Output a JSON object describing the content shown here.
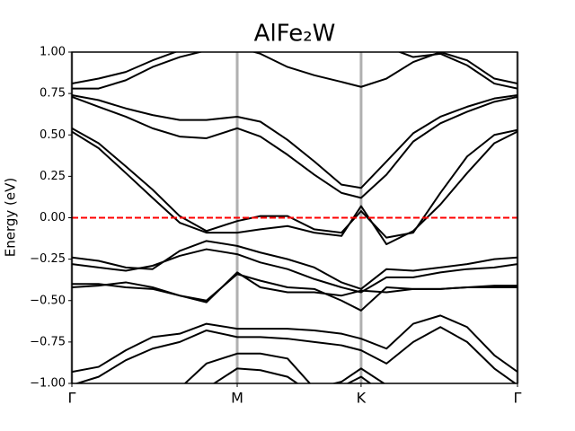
{
  "chart_data": {
    "type": "line",
    "title": "AlFe₂W",
    "ylabel": "Energy (eV)",
    "x": [
      0,
      0.06,
      0.121,
      0.181,
      0.242,
      0.302,
      0.371,
      0.423,
      0.484,
      0.544,
      0.605,
      0.649,
      0.706,
      0.766,
      0.827,
      0.887,
      0.948,
      1
    ],
    "xlim": [
      0,
      1
    ],
    "xticks": [
      {
        "value": 0,
        "label": "Γ"
      },
      {
        "value": 0.371,
        "label": "M"
      },
      {
        "value": 0.649,
        "label": "K"
      },
      {
        "value": 1,
        "label": "Γ"
      }
    ],
    "ylim": [
      -1,
      1
    ],
    "yticks": [
      {
        "value": -1,
        "label": "−1.00"
      },
      {
        "value": -0.75,
        "label": "−0.75"
      },
      {
        "value": -0.5,
        "label": "−0.50"
      },
      {
        "value": -0.25,
        "label": "−0.25"
      },
      {
        "value": 0,
        "label": "0.00"
      },
      {
        "value": 0.25,
        "label": "0.25"
      },
      {
        "value": 0.5,
        "label": "0.50"
      },
      {
        "value": 0.75,
        "label": "0.75"
      },
      {
        "value": 1,
        "label": "1.00"
      }
    ],
    "grid": "x",
    "grid_color": "#b0b0b0",
    "hline": {
      "y": 0,
      "color": "#ff0000",
      "style": "dashed"
    },
    "series": [
      {
        "color": "#000000",
        "values": [
          0.81,
          0.84,
          0.88,
          0.95,
          1.01,
          null,
          1.03,
          0.99,
          0.91,
          0.86,
          0.82,
          0.79,
          0.84,
          0.94,
          1.0,
          0.95,
          0.84,
          0.81
        ]
      },
      {
        "color": "#000000",
        "values": [
          0.78,
          0.78,
          0.83,
          0.91,
          0.97,
          1.01,
          null,
          null,
          null,
          null,
          null,
          null,
          1.03,
          0.97,
          0.99,
          0.92,
          0.81,
          0.78
        ]
      },
      {
        "color": "#000000",
        "values": [
          0.74,
          0.71,
          0.66,
          0.62,
          0.59,
          0.59,
          0.61,
          0.58,
          0.47,
          0.34,
          0.2,
          0.18,
          0.34,
          0.51,
          0.61,
          0.67,
          0.72,
          0.74
        ]
      },
      {
        "color": "#000000",
        "values": [
          0.73,
          0.67,
          0.61,
          0.54,
          0.49,
          0.48,
          0.54,
          0.49,
          0.38,
          0.26,
          0.15,
          0.12,
          0.26,
          0.46,
          0.57,
          0.64,
          0.7,
          0.73
        ]
      },
      {
        "color": "#000000",
        "values": [
          0.54,
          0.45,
          0.31,
          0.17,
          0.01,
          -0.08,
          -0.02,
          0.01,
          0.01,
          -0.07,
          -0.09,
          0.04,
          -0.12,
          -0.09,
          0.15,
          0.37,
          0.5,
          0.53
        ]
      },
      {
        "color": "#000000",
        "values": [
          0.52,
          0.42,
          0.27,
          0.12,
          -0.03,
          -0.09,
          -0.09,
          -0.07,
          -0.05,
          -0.09,
          -0.11,
          0.07,
          -0.16,
          -0.08,
          0.08,
          0.27,
          0.45,
          0.52
        ]
      },
      {
        "color": "#000000",
        "values": [
          -0.24,
          -0.26,
          -0.3,
          -0.31,
          -0.2,
          -0.14,
          -0.17,
          -0.21,
          -0.25,
          -0.3,
          -0.39,
          -0.43,
          -0.31,
          -0.32,
          -0.3,
          -0.28,
          -0.25,
          -0.24
        ]
      },
      {
        "color": "#000000",
        "values": [
          -0.28,
          -0.3,
          -0.32,
          -0.29,
          -0.23,
          -0.19,
          -0.22,
          -0.27,
          -0.31,
          -0.37,
          -0.42,
          -0.45,
          -0.36,
          -0.36,
          -0.33,
          -0.31,
          -0.3,
          -0.28
        ]
      },
      {
        "color": "#000000",
        "values": [
          -0.4,
          -0.4,
          -0.42,
          -0.43,
          -0.47,
          -0.5,
          -0.34,
          -0.38,
          -0.42,
          -0.43,
          -0.5,
          -0.56,
          -0.42,
          -0.43,
          -0.43,
          -0.42,
          -0.41,
          -0.41
        ]
      },
      {
        "color": "#000000",
        "values": [
          -0.42,
          -0.41,
          -0.39,
          -0.42,
          -0.47,
          -0.51,
          -0.33,
          -0.42,
          -0.45,
          -0.45,
          -0.47,
          -0.44,
          -0.45,
          -0.43,
          -0.43,
          -0.42,
          -0.42,
          -0.42
        ]
      },
      {
        "color": "#000000",
        "values": [
          -0.93,
          -0.9,
          -0.8,
          -0.72,
          -0.7,
          -0.64,
          -0.67,
          -0.67,
          -0.67,
          -0.68,
          -0.7,
          -0.73,
          -0.79,
          -0.64,
          -0.59,
          -0.66,
          -0.83,
          -0.93
        ]
      },
      {
        "color": "#000000",
        "values": [
          -1.01,
          -0.96,
          -0.86,
          -0.79,
          -0.75,
          -0.68,
          -0.72,
          -0.72,
          -0.73,
          -0.75,
          -0.77,
          -0.8,
          -0.88,
          -0.75,
          -0.66,
          -0.75,
          -0.91,
          -1.01
        ]
      },
      {
        "color": "#000000",
        "values": [
          null,
          null,
          null,
          null,
          -1.03,
          -0.88,
          -0.82,
          -0.82,
          -0.85,
          -1.03,
          -0.99,
          -0.91,
          -1.01,
          null,
          null,
          null,
          null,
          null
        ]
      },
      {
        "color": "#000000",
        "values": [
          null,
          null,
          null,
          null,
          null,
          -1.03,
          -0.91,
          -0.92,
          -0.96,
          -1.07,
          -1.02,
          -0.96,
          -1.07,
          null,
          null,
          null,
          null,
          null
        ]
      }
    ]
  }
}
